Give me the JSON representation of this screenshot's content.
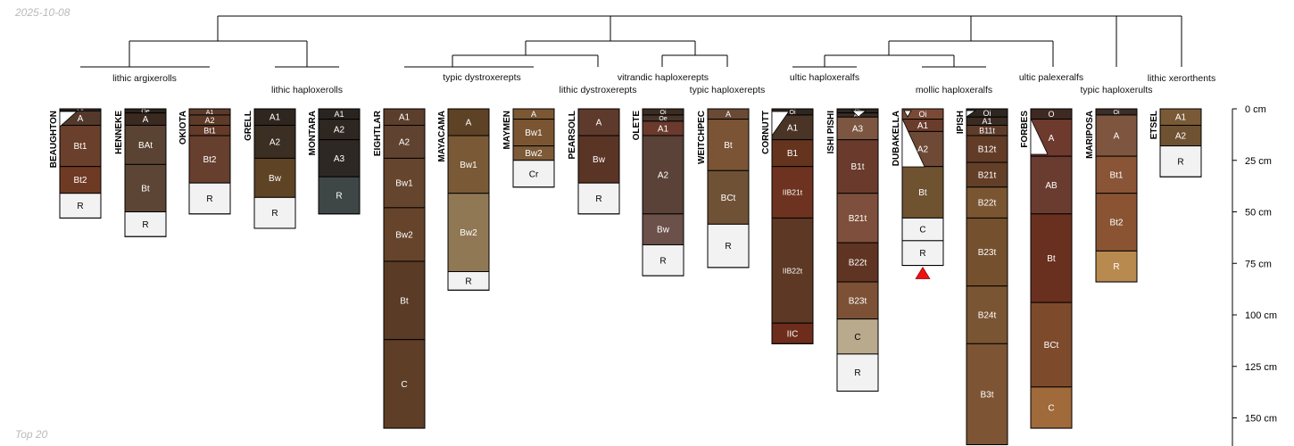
{
  "date_label": "2025-10-08",
  "footer_label": "Top 20",
  "depth_scale": {
    "max_cm": 160,
    "ticks": [
      {
        "cm": 0,
        "label": "0 cm"
      },
      {
        "cm": 25,
        "label": "25 cm"
      },
      {
        "cm": 50,
        "label": "50 cm"
      },
      {
        "cm": 75,
        "label": "75 cm"
      },
      {
        "cm": 100,
        "label": "100 cm"
      },
      {
        "cm": 125,
        "label": "125 cm"
      },
      {
        "cm": 150,
        "label": "150 cm"
      }
    ]
  },
  "group_labels": [
    "lithic argixerolls",
    "lithic haploxerolls",
    "typic dystroxerepts",
    "lithic dystroxerepts",
    "vitrandic haploxerepts",
    "typic haploxerepts",
    "ultic haploxeralfs",
    "mollic haploxeralfs",
    "ultic palexeralfs",
    "typic haploxerults",
    "lithic xerorthents"
  ],
  "marker": {
    "symbol": "triangle",
    "color": "#ee1111",
    "profile": "DUBAKELLA"
  },
  "profiles": [
    {
      "name": "BEAUGHTON",
      "horizons": [
        {
          "name": "Oi",
          "top": 0,
          "bottom": 1,
          "color": "#3a2f28"
        },
        {
          "name": "A",
          "top": 1,
          "bottom": 8,
          "color": "#53392c"
        },
        {
          "name": "Bt1",
          "top": 8,
          "bottom": 28,
          "color": "#6a3f2c"
        },
        {
          "name": "Bt2",
          "top": 28,
          "bottom": 41,
          "color": "#6f3a24"
        },
        {
          "name": "R",
          "top": 41,
          "bottom": 53,
          "color": "#f2f2f2"
        }
      ]
    },
    {
      "name": "HENNEKE",
      "horizons": [
        {
          "name": "Oe",
          "top": 0,
          "bottom": 2,
          "color": "#2c231d"
        },
        {
          "name": "A",
          "top": 2,
          "bottom": 8,
          "color": "#3b2a20"
        },
        {
          "name": "BAt",
          "top": 8,
          "bottom": 27,
          "color": "#5a4332"
        },
        {
          "name": "Bt",
          "top": 27,
          "bottom": 50,
          "color": "#5c4535"
        },
        {
          "name": "R",
          "top": 50,
          "bottom": 62,
          "color": "#f2f2f2"
        }
      ]
    },
    {
      "name": "OKIOTA",
      "horizons": [
        {
          "name": "A1",
          "top": 0,
          "bottom": 3,
          "color": "#5c3a2a"
        },
        {
          "name": "A2",
          "top": 3,
          "bottom": 8,
          "color": "#5e3a28"
        },
        {
          "name": "Bt1",
          "top": 8,
          "bottom": 13,
          "color": "#643b28"
        },
        {
          "name": "Bt2",
          "top": 13,
          "bottom": 36,
          "color": "#663f2e"
        },
        {
          "name": "R",
          "top": 36,
          "bottom": 51,
          "color": "#f2f2f2"
        }
      ]
    },
    {
      "name": "GRELL",
      "horizons": [
        {
          "name": "A1",
          "top": 0,
          "bottom": 8,
          "color": "#2f2620"
        },
        {
          "name": "A2",
          "top": 8,
          "bottom": 24,
          "color": "#3b2e22"
        },
        {
          "name": "Bw",
          "top": 24,
          "bottom": 43,
          "color": "#5e4325"
        },
        {
          "name": "R",
          "top": 43,
          "bottom": 58,
          "color": "#f2f2f2"
        }
      ]
    },
    {
      "name": "MONTARA",
      "horizons": [
        {
          "name": "A1",
          "top": 0,
          "bottom": 5,
          "color": "#2a2420"
        },
        {
          "name": "A2",
          "top": 5,
          "bottom": 15,
          "color": "#2e2621"
        },
        {
          "name": "A3",
          "top": 15,
          "bottom": 33,
          "color": "#2e2824"
        },
        {
          "name": "R",
          "top": 33,
          "bottom": 51,
          "color": "#3f4646"
        }
      ]
    },
    {
      "name": "EIGHTLAR",
      "horizons": [
        {
          "name": "A1",
          "top": 0,
          "bottom": 8,
          "color": "#5c3e2c"
        },
        {
          "name": "A2",
          "top": 8,
          "bottom": 24,
          "color": "#5f4230"
        },
        {
          "name": "Bw1",
          "top": 24,
          "bottom": 48,
          "color": "#66452e"
        },
        {
          "name": "Bw2",
          "top": 48,
          "bottom": 74,
          "color": "#66442c"
        },
        {
          "name": "Bt",
          "top": 74,
          "bottom": 112,
          "color": "#5a3b26"
        },
        {
          "name": "C",
          "top": 112,
          "bottom": 155,
          "color": "#5e3e27"
        }
      ]
    },
    {
      "name": "MAYACAMA",
      "horizons": [
        {
          "name": "A",
          "top": 0,
          "bottom": 13,
          "color": "#5e4225"
        },
        {
          "name": "Bw1",
          "top": 13,
          "bottom": 41,
          "color": "#7a5a36"
        },
        {
          "name": "Bw2",
          "top": 41,
          "bottom": 79,
          "color": "#917854"
        },
        {
          "name": "R",
          "top": 79,
          "bottom": 88,
          "color": "#f2f2f2"
        }
      ]
    },
    {
      "name": "MAYMEN",
      "horizons": [
        {
          "name": "A",
          "top": 0,
          "bottom": 5,
          "color": "#7b5733"
        },
        {
          "name": "Bw1",
          "top": 5,
          "bottom": 18,
          "color": "#7b5532"
        },
        {
          "name": "Bw2",
          "top": 18,
          "bottom": 25,
          "color": "#7d5a38"
        },
        {
          "name": "Cr",
          "top": 25,
          "bottom": 38,
          "color": "#f2f2f2"
        }
      ]
    },
    {
      "name": "PEARSOLL",
      "horizons": [
        {
          "name": "A",
          "top": 0,
          "bottom": 13,
          "color": "#5e3a2c"
        },
        {
          "name": "Bw",
          "top": 13,
          "bottom": 36,
          "color": "#5a3424"
        },
        {
          "name": "R",
          "top": 36,
          "bottom": 51,
          "color": "#f2f2f2"
        }
      ]
    },
    {
      "name": "OLETE",
      "horizons": [
        {
          "name": "Oi",
          "top": 0,
          "bottom": 3,
          "color": "#3a2c22"
        },
        {
          "name": "Oe",
          "top": 3,
          "bottom": 6,
          "color": "#46342a"
        },
        {
          "name": "A1",
          "top": 6,
          "bottom": 13,
          "color": "#6b3a2c"
        },
        {
          "name": "A2",
          "top": 13,
          "bottom": 51,
          "color": "#5a4238"
        },
        {
          "name": "Bw",
          "top": 51,
          "bottom": 66,
          "color": "#6c504a"
        },
        {
          "name": "R",
          "top": 66,
          "bottom": 81,
          "color": "#f2f2f2"
        }
      ]
    },
    {
      "name": "WEITCHPEC",
      "horizons": [
        {
          "name": "A",
          "top": 0,
          "bottom": 5,
          "color": "#6a4a34"
        },
        {
          "name": "Bt",
          "top": 5,
          "bottom": 30,
          "color": "#7a5434"
        },
        {
          "name": "BCt",
          "top": 30,
          "bottom": 56,
          "color": "#6f5236"
        },
        {
          "name": "R",
          "top": 56,
          "bottom": 77,
          "color": "#f2f2f2"
        }
      ]
    },
    {
      "name": "CORNUTT",
      "horizons": [
        {
          "name": "Oi",
          "top": 0,
          "bottom": 3,
          "color": "#2e2620"
        },
        {
          "name": "A1",
          "top": 3,
          "bottom": 15,
          "color": "#4a3426"
        },
        {
          "name": "B1",
          "top": 15,
          "bottom": 28,
          "color": "#64341f"
        },
        {
          "name": "IIB21t",
          "top": 28,
          "bottom": 53,
          "color": "#6e3320"
        },
        {
          "name": "IIB22t",
          "top": 53,
          "bottom": 104,
          "color": "#5c3825"
        },
        {
          "name": "IIC",
          "top": 104,
          "bottom": 114,
          "color": "#6e2c1c"
        }
      ]
    },
    {
      "name": "ISHI PISHI",
      "horizons": [
        {
          "name": "Oi",
          "top": 0,
          "bottom": 2,
          "color": "#2c2620"
        },
        {
          "name": "A1",
          "top": 2,
          "bottom": 4,
          "color": "#3a2e25"
        },
        {
          "name": "A3",
          "top": 4,
          "bottom": 15,
          "color": "#7c5640"
        },
        {
          "name": "B1t",
          "top": 15,
          "bottom": 41,
          "color": "#6a3b2c"
        },
        {
          "name": "B21t",
          "top": 41,
          "bottom": 65,
          "color": "#7e4f3c"
        },
        {
          "name": "B22t",
          "top": 65,
          "bottom": 84,
          "color": "#603423"
        },
        {
          "name": "B23t",
          "top": 84,
          "bottom": 102,
          "color": "#7c5135"
        },
        {
          "name": "C",
          "top": 102,
          "bottom": 119,
          "color": "#b9a98d"
        },
        {
          "name": "R",
          "top": 119,
          "bottom": 137,
          "color": "#f2f2f2"
        }
      ]
    },
    {
      "name": "DUBAKELLA",
      "horizons": [
        {
          "name": "Oi",
          "top": 0,
          "bottom": 5,
          "color": "#7a4a36"
        },
        {
          "name": "A1",
          "top": 5,
          "bottom": 11,
          "color": "#6a3c2c"
        },
        {
          "name": "A2",
          "top": 11,
          "bottom": 28,
          "color": "#6e4a36"
        },
        {
          "name": "Bt",
          "top": 28,
          "bottom": 53,
          "color": "#6f5230"
        },
        {
          "name": "C",
          "top": 53,
          "bottom": 64,
          "color": "#f2f2f2"
        },
        {
          "name": "R",
          "top": 64,
          "bottom": 76,
          "color": "#f2f2f2"
        }
      ]
    },
    {
      "name": "IPISH",
      "horizons": [
        {
          "name": "Oi",
          "top": 0,
          "bottom": 4,
          "color": "#2e2620"
        },
        {
          "name": "A1",
          "top": 4,
          "bottom": 8,
          "color": "#3a2b22"
        },
        {
          "name": "B11t",
          "top": 8,
          "bottom": 13,
          "color": "#5e3c2a"
        },
        {
          "name": "B12t",
          "top": 13,
          "bottom": 26,
          "color": "#623c27"
        },
        {
          "name": "B21t",
          "top": 26,
          "bottom": 38,
          "color": "#633f28"
        },
        {
          "name": "B22t",
          "top": 38,
          "bottom": 53,
          "color": "#7a5532"
        },
        {
          "name": "B23t",
          "top": 53,
          "bottom": 86,
          "color": "#74502e"
        },
        {
          "name": "B24t",
          "top": 86,
          "bottom": 114,
          "color": "#7a5533"
        },
        {
          "name": "B3t",
          "top": 114,
          "bottom": 163,
          "color": "#7d5535"
        }
      ]
    },
    {
      "name": "FORBES",
      "horizons": [
        {
          "name": "O",
          "top": 0,
          "bottom": 5,
          "color": "#3e2a22"
        },
        {
          "name": "A",
          "top": 5,
          "bottom": 23,
          "color": "#6e3a2e"
        },
        {
          "name": "AB",
          "top": 23,
          "bottom": 51,
          "color": "#6a3c30"
        },
        {
          "name": "Bt",
          "top": 51,
          "bottom": 94,
          "color": "#6a301f"
        },
        {
          "name": "BCt",
          "top": 94,
          "bottom": 135,
          "color": "#7e4a2c"
        },
        {
          "name": "C",
          "top": 135,
          "bottom": 155,
          "color": "#a06a3a"
        }
      ]
    },
    {
      "name": "MARIPOSA",
      "horizons": [
        {
          "name": "Oi",
          "top": 0,
          "bottom": 3,
          "color": "#3a2e28"
        },
        {
          "name": "A",
          "top": 3,
          "bottom": 23,
          "color": "#7e5640"
        },
        {
          "name": "Bt1",
          "top": 23,
          "bottom": 41,
          "color": "#8a5436"
        },
        {
          "name": "Bt2",
          "top": 41,
          "bottom": 69,
          "color": "#8a5433"
        },
        {
          "name": "R",
          "top": 69,
          "bottom": 84,
          "color": "#b98a50"
        }
      ]
    },
    {
      "name": "ETSEL",
      "horizons": [
        {
          "name": "A1",
          "top": 0,
          "bottom": 8,
          "color": "#7a5a36"
        },
        {
          "name": "A2",
          "top": 8,
          "bottom": 18,
          "color": "#6e5232"
        },
        {
          "name": "R",
          "top": 18,
          "bottom": 33,
          "color": "#f2f2f2"
        }
      ]
    }
  ]
}
